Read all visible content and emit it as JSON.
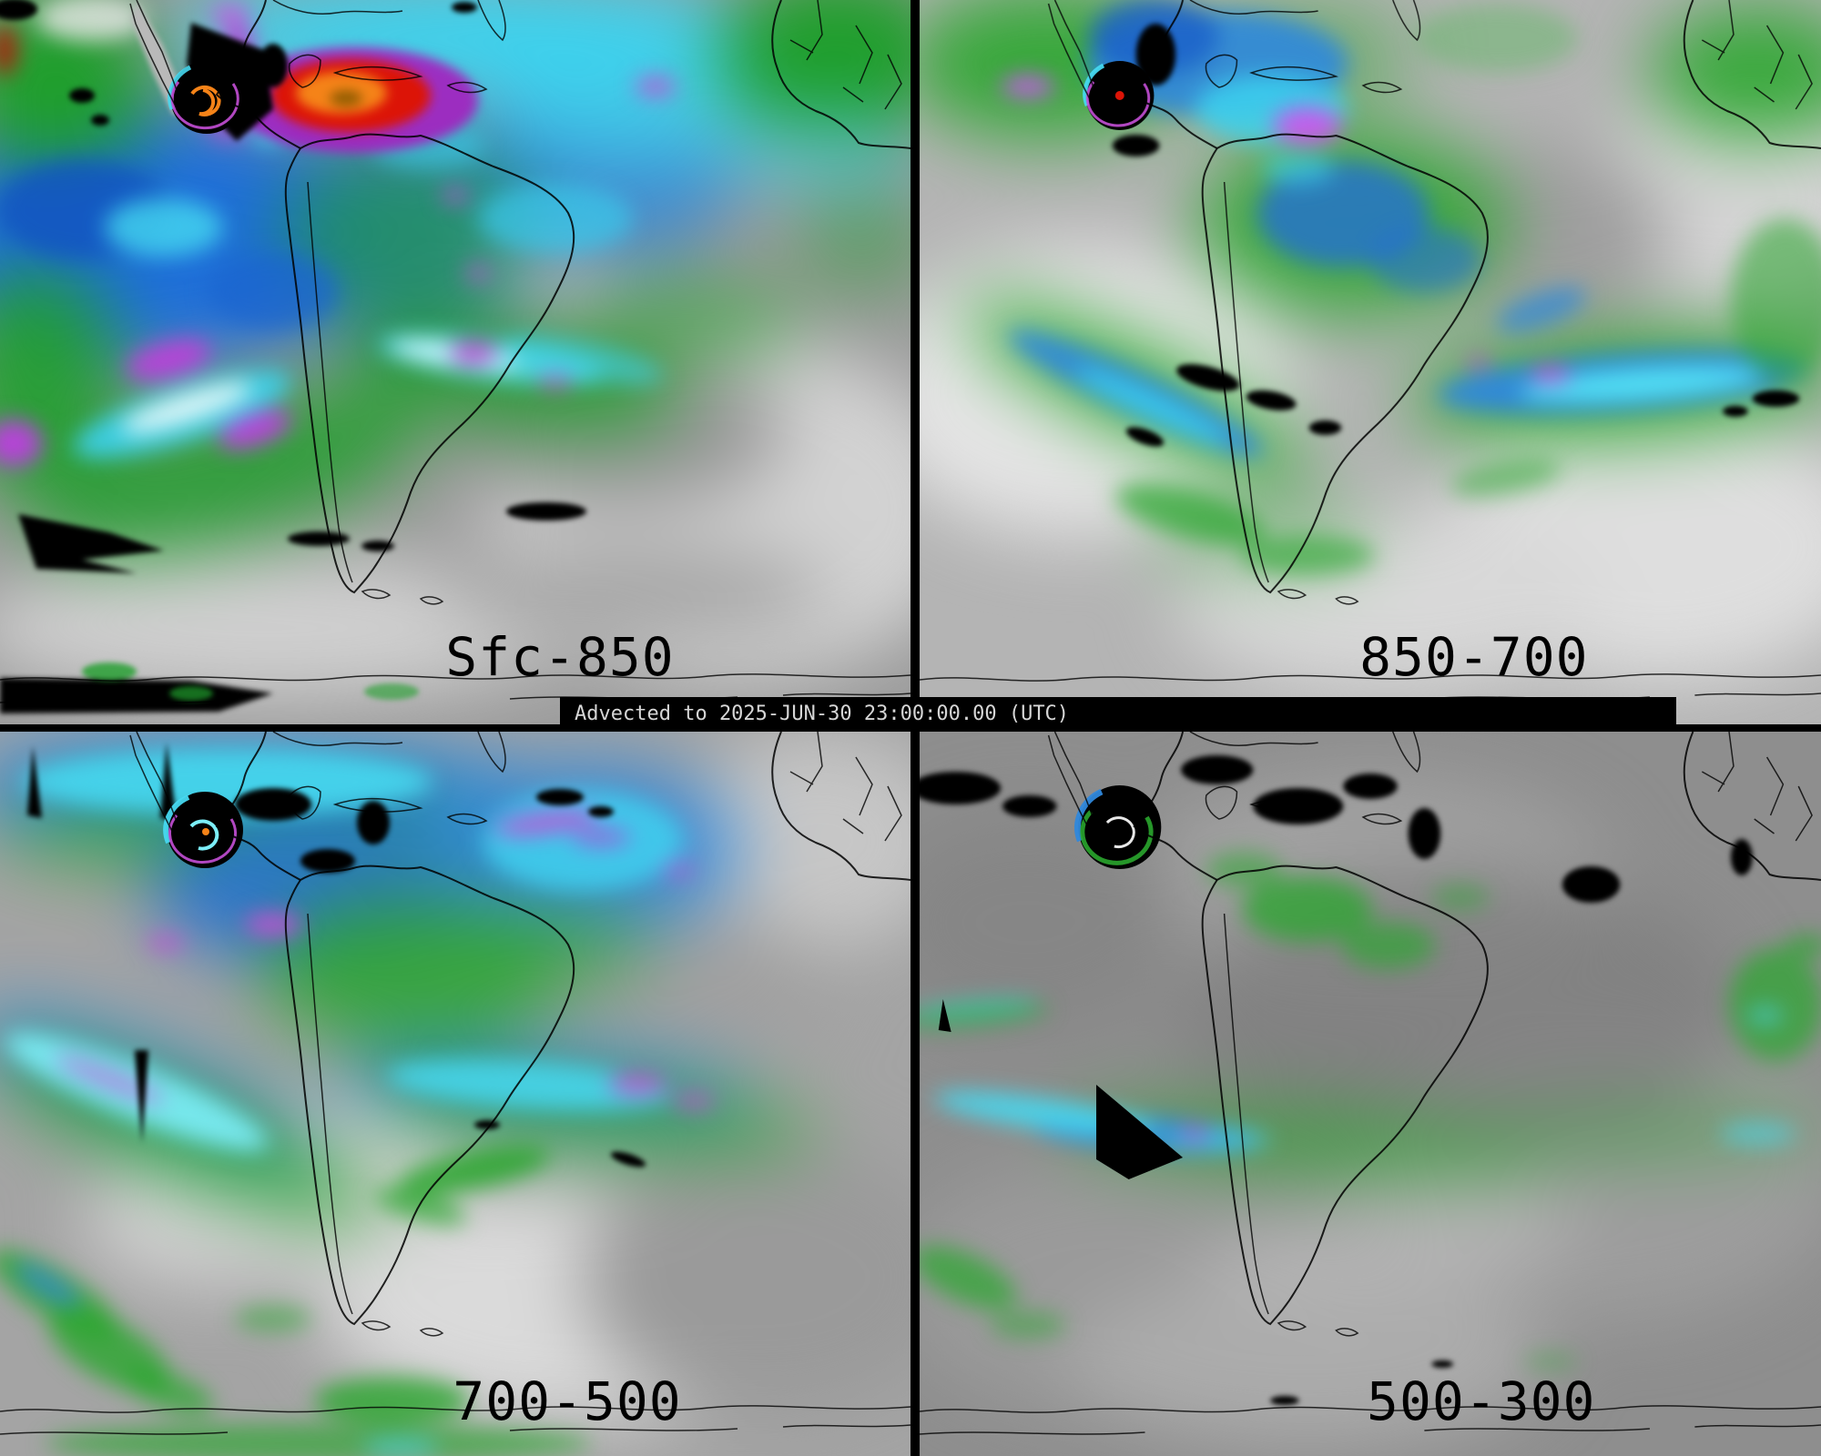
{
  "product": {
    "banner_text": "Advected to 2025-JUN-30 23:00:00.00 (UTC)"
  },
  "panels": [
    {
      "label": "Sfc-850",
      "position": "top-left"
    },
    {
      "label": "850-700",
      "position": "top-right"
    },
    {
      "label": "700-500",
      "position": "bottom-left"
    },
    {
      "label": "500-300",
      "position": "bottom-right"
    }
  ],
  "palette": {
    "background_gray": "#9c9c9c",
    "moisture_green": "#1f9e2c",
    "moisture_blue": "#1e6fd8",
    "moisture_cyan": "#3cd2ee",
    "moisture_magenta": "#c44fd6",
    "moisture_red": "#dc1407",
    "moisture_orange": "#f58318",
    "divider_black": "#000000",
    "banner_text_gray": "#d6d6d6",
    "label_black": "#000000"
  }
}
